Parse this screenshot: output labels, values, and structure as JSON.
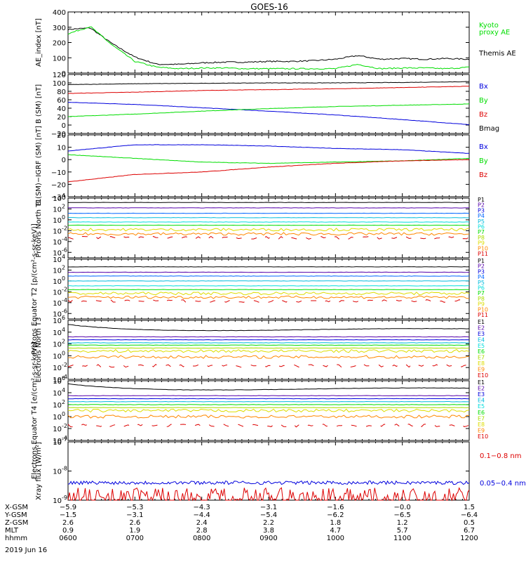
{
  "title": "GOES-16",
  "date": "2019 Jun 16",
  "chart_data": [
    {
      "type": "line",
      "ylabel": "AE_index [nT]",
      "ylim": [
        0,
        420
      ],
      "yticks": [
        "0",
        "100",
        "200",
        "300",
        "400"
      ],
      "x": [
        "0600",
        "0620",
        "0640",
        "0700",
        "0720",
        "0740",
        "0800",
        "0820",
        "0840",
        "0900",
        "0920",
        "0940",
        "1000",
        "1020",
        "1040",
        "1100",
        "1120",
        "1140",
        "1200"
      ],
      "series": [
        {
          "name": "Themis AE",
          "color": "#000000",
          "values": [
            300,
            310,
            200,
            110,
            60,
            60,
            70,
            75,
            75,
            80,
            80,
            85,
            95,
            120,
            95,
            100,
            95,
            100,
            95
          ]
        },
        {
          "name": "Kyoto proxy AE",
          "color": "#00dd00",
          "values": [
            270,
            320,
            190,
            80,
            40,
            30,
            35,
            35,
            30,
            30,
            30,
            30,
            30,
            60,
            30,
            35,
            35,
            30,
            40
          ]
        }
      ],
      "legend": [
        {
          "label": "Kyoto",
          "color": "#00dd00"
        },
        {
          "label": "proxy AE",
          "color": "#00dd00"
        },
        {
          "label": "Themis AE",
          "color": "#000000"
        }
      ]
    },
    {
      "type": "line",
      "ylabel": "B (SM) [nT]",
      "ylim": [
        -20,
        120
      ],
      "yticks": [
        "−20",
        "0",
        "20",
        "40",
        "60",
        "80",
        "100",
        "120"
      ],
      "x": [
        "0600",
        "0700",
        "0800",
        "0900",
        "1000",
        "1100",
        "1200"
      ],
      "series": [
        {
          "name": "Bx",
          "color": "#0000dd",
          "values": [
            54,
            49,
            41,
            33,
            24,
            13,
            1
          ]
        },
        {
          "name": "By",
          "color": "#00dd00",
          "values": [
            20,
            26,
            33,
            39,
            44,
            47,
            50
          ]
        },
        {
          "name": "Bz",
          "color": "#dd0000",
          "values": [
            75,
            78,
            82,
            84,
            86,
            89,
            92
          ]
        },
        {
          "name": "Bmag",
          "color": "#000000",
          "values": [
            96,
            98,
            99,
            100,
            100,
            101,
            103
          ]
        }
      ],
      "legend": [
        {
          "label": "Bx",
          "color": "#0000dd"
        },
        {
          "label": "By",
          "color": "#00dd00"
        },
        {
          "label": "Bz",
          "color": "#dd0000"
        },
        {
          "label": "Bmag",
          "color": "#000000"
        }
      ]
    },
    {
      "type": "line",
      "ylabel": "B (SM)−IGRF (SM) [nT]",
      "ylim": [
        -30,
        20
      ],
      "yticks": [
        "−30",
        "−20",
        "−10",
        "0",
        "10",
        "20"
      ],
      "x": [
        "0600",
        "0700",
        "0800",
        "0900",
        "1000",
        "1100",
        "1200"
      ],
      "series": [
        {
          "name": "Bx",
          "color": "#0000dd",
          "values": [
            7,
            12,
            12,
            11,
            9,
            8,
            5
          ]
        },
        {
          "name": "By",
          "color": "#00dd00",
          "values": [
            4,
            1,
            -2,
            -3,
            -2,
            -1,
            1
          ]
        },
        {
          "name": "Bz",
          "color": "#dd0000",
          "values": [
            -18,
            -12,
            -10,
            -6,
            -3,
            -1,
            0
          ]
        }
      ],
      "legend": [
        {
          "label": "Bx",
          "color": "#0000dd"
        },
        {
          "label": "By",
          "color": "#00dd00"
        },
        {
          "label": "Bz",
          "color": "#dd0000"
        }
      ]
    },
    {
      "type": "line",
      "log": true,
      "ylabel": "Protons North T1",
      "ylim_exp": [
        -7,
        4
      ],
      "yticks": [
        {
          "b": "10",
          "e": "4"
        },
        {
          "b": "10",
          "e": "2"
        },
        {
          "b": "10",
          "e": "0"
        },
        {
          "b": "10",
          "e": "-2"
        },
        {
          "b": "10",
          "e": "-4"
        },
        {
          "b": "10",
          "e": "-6"
        }
      ],
      "levels_exp": [
        3.2,
        2.2,
        1.2,
        0.4,
        -0.4,
        -1.0,
        -1.8,
        -2.6,
        -3.3
      ],
      "colors": [
        "#000000",
        "#5500aa",
        "#0000dd",
        "#0066ff",
        "#00bbdd",
        "#00dddd",
        "#00dd00",
        "#aadd00",
        "#dddd00",
        "#ff8800",
        "#dd0000"
      ],
      "legend": [
        "P1",
        "P2",
        "P3",
        "P4",
        "P5",
        "P6",
        "P7",
        "P8",
        "P9",
        "P10",
        "P11"
      ]
    },
    {
      "type": "line",
      "log": true,
      "ylabel": "Protons Equator T2 [p/(cm²-s-sr-keV)]",
      "ylim_exp": [
        -7,
        4
      ],
      "yticks": [
        {
          "b": "10",
          "e": "4"
        },
        {
          "b": "10",
          "e": "2"
        },
        {
          "b": "10",
          "e": "0"
        },
        {
          "b": "10",
          "e": "-2"
        },
        {
          "b": "10",
          "e": "-4"
        },
        {
          "b": "10",
          "e": "-6"
        }
      ],
      "levels_exp": [
        2.6,
        1.6,
        0.9,
        0.0,
        -0.9,
        -1.6,
        -2.3,
        -3.0,
        -3.7
      ],
      "colors": [
        "#000000",
        "#5500aa",
        "#0000dd",
        "#0066ff",
        "#00bbdd",
        "#00dddd",
        "#00dd00",
        "#aadd00",
        "#dddd00",
        "#ff8800",
        "#dd0000"
      ],
      "legend": [
        "P1",
        "P2",
        "P3",
        "P4",
        "P5",
        "P6",
        "P7",
        "P8",
        "P9",
        "P10",
        "P11"
      ]
    },
    {
      "type": "line",
      "log": true,
      "ylabel": "Electrons North T3",
      "ylim_exp": [
        -4,
        6
      ],
      "yticks": [
        {
          "b": "10",
          "e": "6"
        },
        {
          "b": "10",
          "e": "4"
        },
        {
          "b": "10",
          "e": "2"
        },
        {
          "b": "10",
          "e": "0"
        },
        {
          "b": "10",
          "e": "-2"
        },
        {
          "b": "10",
          "e": "-4"
        }
      ],
      "levels_exp": [
        4.4,
        3.2,
        2.7,
        2.2,
        1.8,
        1.3,
        0.8,
        -0.2,
        -1.7
      ],
      "colors": [
        "#000000",
        "#5500aa",
        "#0000dd",
        "#00bbdd",
        "#00dddd",
        "#00dd00",
        "#aadd00",
        "#dddd00",
        "#ff8800",
        "#dd0000"
      ],
      "legend": [
        "E1",
        "E2",
        "E3",
        "E4",
        "E5",
        "E6",
        "E7",
        "E8",
        "E9",
        "E10"
      ]
    },
    {
      "type": "line",
      "log": true,
      "ylabel": "Electrons Equator T4 [e/(cm²-s-sr-keV)]",
      "ylim_exp": [
        -4,
        6
      ],
      "yticks": [
        {
          "b": "10",
          "e": "6"
        },
        {
          "b": "10",
          "e": "4"
        },
        {
          "b": "10",
          "e": "2"
        },
        {
          "b": "10",
          "e": "0"
        },
        {
          "b": "10",
          "e": "-2"
        },
        {
          "b": "10",
          "e": "-4"
        }
      ],
      "levels_exp": [
        4.6,
        3.5,
        3.0,
        2.5,
        2.0,
        1.5,
        1.0,
        0.0,
        -1.5
      ],
      "colors": [
        "#000000",
        "#5500aa",
        "#0000dd",
        "#00bbdd",
        "#00dddd",
        "#00dd00",
        "#aadd00",
        "#dddd00",
        "#ff8800",
        "#dd0000"
      ],
      "legend": [
        "E1",
        "E2",
        "E3",
        "E4",
        "E5",
        "E6",
        "E7",
        "E8",
        "E9",
        "E10"
      ]
    },
    {
      "type": "line",
      "log": true,
      "ylabel": "Xray flux [W/m²]",
      "ylim_exp": [
        -9,
        -7
      ],
      "yticks": [
        {
          "b": "10",
          "e": "-7"
        },
        {
          "b": "10",
          "e": "-8"
        },
        {
          "b": "10",
          "e": "-9"
        }
      ],
      "series": [
        {
          "name": "0.05−0.4 nm",
          "color": "#0000dd",
          "level_exp": -8.4
        },
        {
          "name": "0.1−0.8 nm",
          "color": "#dd0000",
          "level_exp": -8.85
        }
      ],
      "legend": [
        {
          "label": "0.1−0.8 nm",
          "color": "#dd0000"
        },
        {
          "label": "0.05−0.4 nm",
          "color": "#0000dd"
        }
      ]
    }
  ],
  "xaxis": {
    "row_labels": [
      "X-GSM",
      "Y-GSM",
      "Z-GSM",
      "MLT",
      "hhmm"
    ],
    "columns": [
      [
        "−5.9",
        "−1.5",
        "2.6",
        "0.9",
        "0600"
      ],
      [
        "−5.3",
        "−3.1",
        "2.6",
        "1.9",
        "0700"
      ],
      [
        "−4.3",
        "−4.4",
        "2.4",
        "2.8",
        "0800"
      ],
      [
        "−3.1",
        "−5.4",
        "2.2",
        "3.8",
        "0900"
      ],
      [
        "−1.6",
        "−6.2",
        "1.8",
        "4.7",
        "1000"
      ],
      [
        "−0.0",
        "−6.5",
        "1.2",
        "5.7",
        "1100"
      ],
      [
        "1.5",
        "−6.4",
        "0.5",
        "6.7",
        "1200"
      ]
    ]
  }
}
